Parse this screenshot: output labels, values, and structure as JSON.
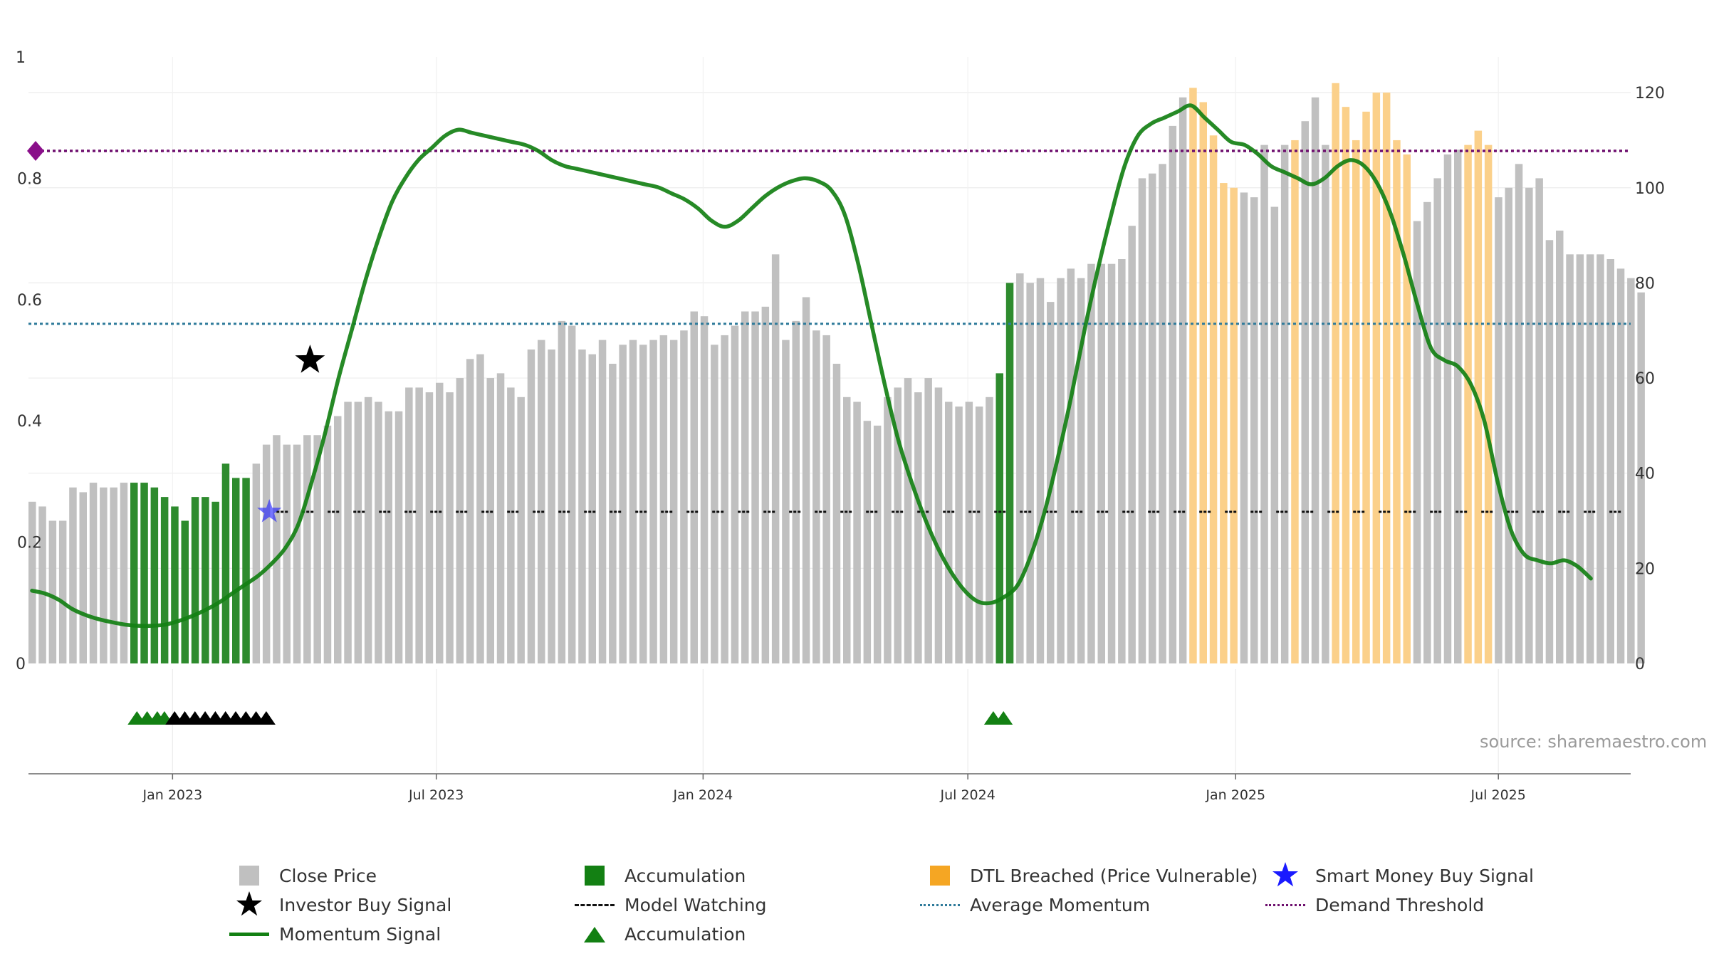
{
  "chart_data": {
    "type": "bar",
    "watermark": "source: sharemaestro.com",
    "left_axis": {
      "ticks": [
        "0",
        "0.2",
        "0.4",
        "0.6",
        "0.8",
        "1"
      ],
      "values": [
        0,
        0.2,
        0.4,
        0.6,
        0.8,
        1
      ],
      "range": [
        0,
        1
      ]
    },
    "right_axis": {
      "ticks": [
        "0",
        "20",
        "40",
        "60",
        "80",
        "100",
        "120"
      ],
      "values": [
        0,
        20,
        40,
        60,
        80,
        100,
        120
      ],
      "range": [
        0,
        127.5
      ]
    },
    "x_ticks": [
      "Jan 2023",
      "Jul 2023",
      "Jan 2024",
      "Jul 2024",
      "Jan 2025",
      "Jul 2025"
    ],
    "x_tick_weeks": [
      13.8,
      39.7,
      65.9,
      91.9,
      118.2,
      144.0
    ],
    "weeks_total": 157,
    "average_momentum": 0.56,
    "demand_threshold": 0.845,
    "model_watching_level": 0.25,
    "close_prices": [
      34,
      33,
      30,
      30,
      37,
      36,
      38,
      37,
      37,
      38,
      38,
      38,
      37,
      35,
      33,
      30,
      35,
      35,
      34,
      42,
      39,
      39,
      42,
      46,
      48,
      46,
      46,
      48,
      48,
      50,
      52,
      55,
      55,
      56,
      55,
      53,
      53,
      58,
      58,
      57,
      59,
      57,
      60,
      64,
      65,
      60,
      61,
      58,
      56,
      66,
      68,
      66,
      72,
      71,
      66,
      65,
      68,
      63,
      67,
      68,
      67,
      68,
      69,
      68,
      70,
      74,
      73,
      67,
      69,
      71,
      74,
      74,
      75,
      86,
      68,
      72,
      77,
      70,
      69,
      63,
      56,
      55,
      51,
      50,
      56,
      58,
      60,
      57,
      60,
      58,
      55,
      54,
      55,
      54,
      56,
      61,
      80,
      82,
      80,
      81,
      76,
      81,
      83,
      81,
      84,
      84,
      84,
      85,
      92,
      102,
      103,
      105,
      113,
      119,
      121,
      118,
      111,
      101,
      100,
      99,
      98,
      109,
      96,
      109,
      110,
      114,
      119,
      109,
      122,
      117,
      110,
      116,
      120,
      120,
      110,
      107,
      93,
      97,
      102,
      107,
      108,
      109,
      112,
      109,
      98,
      100,
      105,
      100,
      102,
      89,
      91,
      86,
      86,
      86,
      86,
      85,
      83,
      81,
      78
    ],
    "bar_categories": "kkkkkkkkkkggggggggggggkkkkkkkkkkkkkkkkkkkkkkkkkkkkkkkkkkkkkkkkkkkkkkkkkkkkkkkkkkkkkkkkkkkkkkkkkggkkkkkkkkkkkkkkkkkoooookkkkkokkkooooooookkkkkoookkkkkkkkkkkkkkkk",
    "momentum_signal": [
      0.12,
      0.115,
      0.105,
      0.09,
      0.08,
      0.073,
      0.068,
      0.064,
      0.062,
      0.062,
      0.064,
      0.07,
      0.078,
      0.088,
      0.1,
      0.115,
      0.13,
      0.145,
      0.165,
      0.19,
      0.23,
      0.3,
      0.38,
      0.47,
      0.55,
      0.63,
      0.7,
      0.76,
      0.8,
      0.83,
      0.85,
      0.87,
      0.88,
      0.875,
      0.87,
      0.865,
      0.86,
      0.855,
      0.845,
      0.83,
      0.82,
      0.815,
      0.81,
      0.805,
      0.8,
      0.795,
      0.79,
      0.785,
      0.775,
      0.765,
      0.75,
      0.73,
      0.72,
      0.73,
      0.75,
      0.77,
      0.785,
      0.795,
      0.8,
      0.795,
      0.78,
      0.74,
      0.66,
      0.56,
      0.46,
      0.37,
      0.3,
      0.24,
      0.19,
      0.15,
      0.12,
      0.102,
      0.1,
      0.11,
      0.13,
      0.18,
      0.25,
      0.34,
      0.44,
      0.55,
      0.65,
      0.74,
      0.82,
      0.87,
      0.89,
      0.9,
      0.91,
      0.92,
      0.9,
      0.88,
      0.86,
      0.855,
      0.84,
      0.82,
      0.81,
      0.8,
      0.79,
      0.8,
      0.82,
      0.83,
      0.82,
      0.79,
      0.74,
      0.67,
      0.59,
      0.52,
      0.5,
      0.49,
      0.46,
      0.4,
      0.3,
      0.22,
      0.18,
      0.17,
      0.165,
      0.17,
      0.16,
      0.14
    ],
    "momentum_weeks": [
      0,
      1,
      2,
      3,
      4,
      5,
      6,
      7,
      8,
      9,
      10,
      11,
      12,
      13,
      14,
      15,
      16,
      17,
      18,
      19,
      20,
      21,
      22,
      23,
      24,
      25,
      26,
      27,
      28,
      29,
      30,
      31,
      32,
      33,
      34,
      35,
      36,
      37,
      38,
      39,
      40,
      41,
      42,
      43,
      44,
      45,
      46,
      47,
      48,
      49,
      50,
      51,
      52,
      53,
      54,
      55,
      56,
      57,
      58,
      59,
      60,
      61,
      62,
      63,
      64,
      65,
      66,
      67,
      68,
      69,
      70,
      71,
      72,
      73,
      74,
      75,
      76,
      77,
      78,
      79,
      80,
      81,
      82,
      83,
      84,
      85,
      86,
      87,
      88,
      89,
      90,
      91,
      92,
      93,
      94,
      95,
      96,
      97,
      98,
      99,
      100,
      101,
      102,
      103,
      104,
      105,
      106,
      107,
      108,
      109,
      110,
      111,
      112,
      113,
      114,
      115,
      116,
      117,
      118,
      119
    ],
    "momentum_x_scale": 1.3084,
    "investor_buy_signal": {
      "week": 27.3,
      "value": 0.5
    },
    "smart_money_buy_signal": {
      "week": 23.3,
      "value": 0.25
    },
    "accumulation_markers_green": [
      10.3,
      11.3,
      12.3,
      13.0,
      94.4,
      95.4
    ],
    "accumulation_markers_black": [
      14.0,
      15.0,
      16.0,
      17.0,
      18.0,
      19.0,
      20.0,
      21.0,
      22.0,
      23.0
    ],
    "colors": {
      "close_price": "#c0c0c0",
      "accumulation": "#2e8b2e",
      "dtl_breached": "#fbd08a",
      "momentum": "#138013",
      "average_momentum": "#2e7a9a",
      "demand_threshold": "#6e0f6e",
      "model_watching": "#111111",
      "investor_star": "#000000",
      "smart_money_star": "#1a1aff"
    }
  },
  "legend": {
    "close_price": "Close Price",
    "accumulation_bar": "Accumulation",
    "dtl_breached": "DTL Breached (Price Vulnerable)",
    "smart_money": "Smart Money Buy Signal",
    "investor_buy": "Investor Buy Signal",
    "model_watching": "Model Watching",
    "average_momentum": "Average Momentum",
    "demand_threshold": "Demand Threshold",
    "momentum_signal": "Momentum Signal",
    "accumulation_marker": "Accumulation"
  }
}
